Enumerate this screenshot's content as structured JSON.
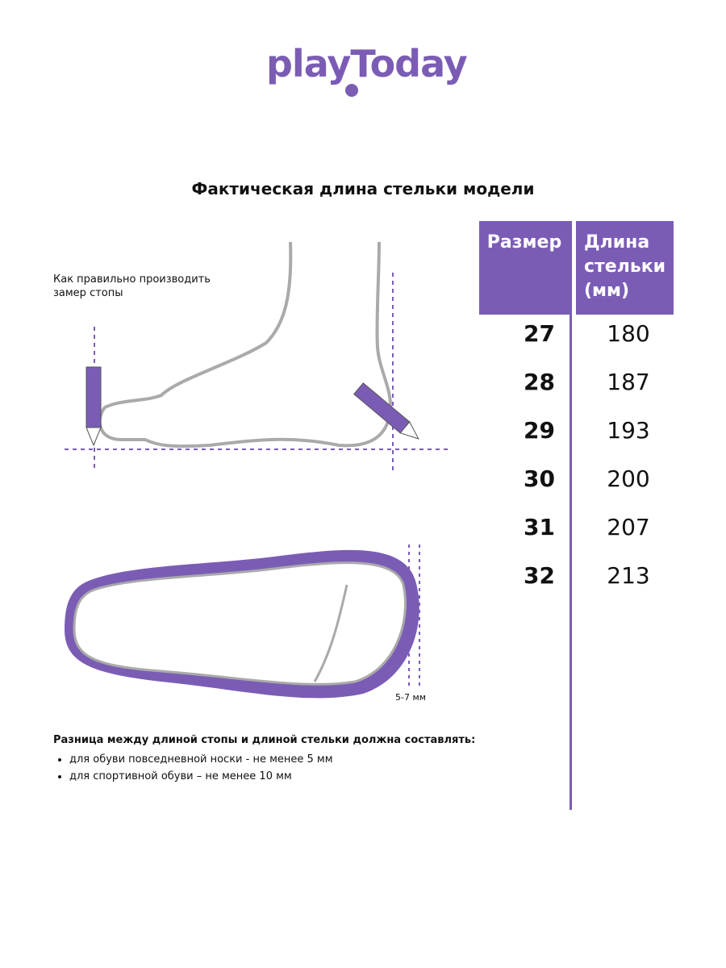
{
  "brand": {
    "logo_text": "playToday",
    "color": "#7b5cb5"
  },
  "title": "Фактическая длина стельки модели",
  "howto": "Как правильно производить замер стопы",
  "gap_label": "5-7 мм",
  "table": {
    "headers": [
      "Размер",
      "Длина стельки (мм)"
    ],
    "rows": [
      {
        "size": "27",
        "length": "180"
      },
      {
        "size": "28",
        "length": "187"
      },
      {
        "size": "29",
        "length": "193"
      },
      {
        "size": "30",
        "length": "200"
      },
      {
        "size": "31",
        "length": "207"
      },
      {
        "size": "32",
        "length": "213"
      }
    ]
  },
  "note": {
    "heading": "Разница между длиной стопы и длиной стельки должна составлять:",
    "items": [
      "для обуви повседневной носки -  не менее 5 мм",
      "для спортивной обуви – не менее 10 мм"
    ]
  }
}
